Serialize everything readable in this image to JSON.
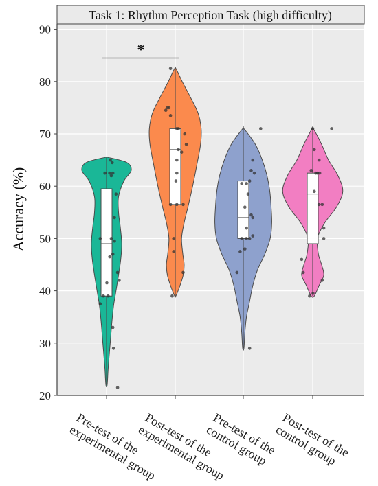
{
  "chart_data": {
    "type": "violin",
    "title": "Task 1: Rhythm Perception Task (high difficulty)",
    "ylabel": "Accuracy  (%)",
    "xlabel": "",
    "ylim": [
      20,
      91
    ],
    "yticks": [
      20,
      30,
      40,
      50,
      60,
      70,
      80,
      90
    ],
    "grid": true,
    "categories": [
      [
        "Pre-test of the",
        "experimental group"
      ],
      [
        "Post-test of the",
        "experimental group"
      ],
      [
        "Pre-test of the",
        "control group"
      ],
      [
        "Post-test of the",
        "control group"
      ]
    ],
    "colors": [
      "#1ab797",
      "#fb8a4d",
      "#8ea1cd",
      "#f27ec2"
    ],
    "groups": [
      {
        "box": {
          "q1": 39,
          "median": 49,
          "q3": 59.5
        },
        "whisker": [
          22,
          65.5
        ],
        "violin": [
          [
            22,
            0.02
          ],
          [
            25,
            0.05
          ],
          [
            28,
            0.09
          ],
          [
            31,
            0.13
          ],
          [
            34,
            0.17
          ],
          [
            37,
            0.22
          ],
          [
            40,
            0.3
          ],
          [
            43,
            0.38
          ],
          [
            46,
            0.45
          ],
          [
            49,
            0.48
          ],
          [
            52,
            0.44
          ],
          [
            55,
            0.38
          ],
          [
            58,
            0.38
          ],
          [
            61,
            0.55
          ],
          [
            63,
            0.78
          ],
          [
            64.5,
            0.65
          ],
          [
            65.5,
            0.05
          ]
        ],
        "points": [
          [
            37.5,
            -0.2
          ],
          [
            39,
            -0.1
          ],
          [
            39,
            0.05
          ],
          [
            41.5,
            0.01
          ],
          [
            42,
            0.4
          ],
          [
            43.5,
            0.35
          ],
          [
            46.5,
            0.1
          ],
          [
            47,
            0.2
          ],
          [
            50,
            -0.2
          ],
          [
            50,
            0.15
          ],
          [
            49.5,
            0.25
          ],
          [
            54,
            0.25
          ],
          [
            58.5,
            0.3
          ],
          [
            62.5,
            -0.05
          ],
          [
            62.5,
            0.1
          ],
          [
            62.5,
            0.2
          ],
          [
            62,
            0.15
          ],
          [
            64.5,
            0.18
          ],
          [
            65,
            0.12
          ],
          [
            33,
            0.2
          ],
          [
            29,
            0.22
          ],
          [
            21.5,
            0.35
          ]
        ]
      },
      {
        "box": {
          "q1": 56.5,
          "median": 67,
          "q3": 71
        },
        "whisker": [
          39,
          82.5
        ],
        "violin": [
          [
            39,
            0.02
          ],
          [
            41,
            0.15
          ],
          [
            43,
            0.25
          ],
          [
            45,
            0.28
          ],
          [
            47,
            0.24
          ],
          [
            50,
            0.2
          ],
          [
            53,
            0.28
          ],
          [
            56,
            0.4
          ],
          [
            60,
            0.55
          ],
          [
            64,
            0.68
          ],
          [
            68,
            0.8
          ],
          [
            71,
            0.82
          ],
          [
            74,
            0.72
          ],
          [
            77,
            0.48
          ],
          [
            80,
            0.22
          ],
          [
            82.5,
            0.02
          ]
        ],
        "points": [
          [
            39,
            -0.1
          ],
          [
            43.5,
            0.25
          ],
          [
            47.5,
            -0.05
          ],
          [
            50,
            -0.05
          ],
          [
            56.5,
            -0.15
          ],
          [
            56.5,
            0.05
          ],
          [
            56.5,
            0.25
          ],
          [
            61,
            0.02
          ],
          [
            62.5,
            0.05
          ],
          [
            65,
            0.05
          ],
          [
            66.5,
            0.2
          ],
          [
            67,
            0.1
          ],
          [
            68,
            0.35
          ],
          [
            70,
            0.3
          ],
          [
            71,
            0.05
          ],
          [
            71,
            0.1
          ],
          [
            73.5,
            -0.15
          ],
          [
            74.5,
            -0.3
          ],
          [
            75,
            -0.2
          ],
          [
            75,
            -0.25
          ],
          [
            82.5,
            -0.15
          ]
        ]
      },
      {
        "box": {
          "q1": 50,
          "median": 54,
          "q3": 61
        },
        "whisker": [
          29,
          71
        ],
        "violin": [
          [
            29,
            0.02
          ],
          [
            32,
            0.05
          ],
          [
            35,
            0.1
          ],
          [
            38,
            0.2
          ],
          [
            41,
            0.3
          ],
          [
            44,
            0.45
          ],
          [
            47,
            0.68
          ],
          [
            50,
            0.85
          ],
          [
            53,
            0.9
          ],
          [
            56,
            0.88
          ],
          [
            59,
            0.84
          ],
          [
            62,
            0.75
          ],
          [
            65,
            0.6
          ],
          [
            68,
            0.38
          ],
          [
            71,
            0.02
          ]
        ],
        "points": [
          [
            29,
            0.2
          ],
          [
            43.5,
            -0.2
          ],
          [
            47.5,
            -0.1
          ],
          [
            48,
            0.05
          ],
          [
            50,
            -0.05
          ],
          [
            50,
            0.1
          ],
          [
            50,
            0.2
          ],
          [
            50.5,
            0.3
          ],
          [
            52,
            0.1
          ],
          [
            54,
            0.3
          ],
          [
            54.5,
            0.25
          ],
          [
            56,
            0.05
          ],
          [
            58.5,
            0.15
          ],
          [
            60.5,
            -0.05
          ],
          [
            60.5,
            0.1
          ],
          [
            61,
            0.2
          ],
          [
            62.5,
            0.35
          ],
          [
            63,
            0.25
          ],
          [
            65,
            0.3
          ],
          [
            71,
            0.55
          ]
        ]
      },
      {
        "box": {
          "q1": 49,
          "median": 58.5,
          "q3": 62.5
        },
        "whisker": [
          39,
          71
        ],
        "violin": [
          [
            39,
            0.05
          ],
          [
            41,
            0.2
          ],
          [
            43,
            0.35
          ],
          [
            45,
            0.28
          ],
          [
            47,
            0.18
          ],
          [
            50,
            0.15
          ],
          [
            53,
            0.38
          ],
          [
            56,
            0.75
          ],
          [
            59,
            0.95
          ],
          [
            62,
            0.8
          ],
          [
            65,
            0.5
          ],
          [
            68,
            0.28
          ],
          [
            71,
            0.02
          ]
        ],
        "points": [
          [
            39,
            -0.1
          ],
          [
            39.5,
            0.01
          ],
          [
            42,
            0.3
          ],
          [
            43.5,
            -0.3
          ],
          [
            46,
            -0.35
          ],
          [
            50,
            0.35
          ],
          [
            52,
            0.35
          ],
          [
            56.5,
            0.2
          ],
          [
            56.5,
            0.3
          ],
          [
            59,
            0.05
          ],
          [
            62.5,
            0.15
          ],
          [
            62.5,
            0.22
          ],
          [
            62.5,
            0.1
          ],
          [
            63,
            -0.05
          ],
          [
            65,
            0.2
          ],
          [
            67,
            0.05
          ],
          [
            71,
            0.0
          ],
          [
            71,
            0.6
          ]
        ]
      }
    ],
    "annotations": [
      {
        "from_group": 0,
        "to_group": 1,
        "y": 84.5,
        "label": "*"
      }
    ]
  }
}
